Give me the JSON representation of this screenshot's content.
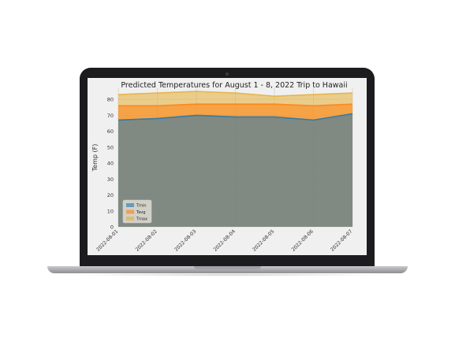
{
  "chart_data": {
    "type": "area",
    "title": "Predicted Temperatures for August 1 - 8, 2022 Trip to Hawaii",
    "xlabel": "",
    "ylabel": "Temp (F)",
    "x": [
      "2022-08-01",
      "2022-08-02",
      "2022-08-03",
      "2022-08-04",
      "2022-08-05",
      "2022-08-06",
      "2022-08-07"
    ],
    "yticks": [
      0,
      10,
      20,
      30,
      40,
      50,
      60,
      70,
      80
    ],
    "ylim": [
      0,
      87
    ],
    "grid": true,
    "legend_position": "lower-left",
    "series": [
      {
        "name": "Tmin",
        "values": [
          67,
          68,
          70,
          69,
          69,
          67,
          71
        ],
        "color": "#1f77b4"
      },
      {
        "name": "Tavg",
        "values": [
          76,
          76,
          77,
          77,
          77,
          76,
          77
        ],
        "color": "#ff7f0e"
      },
      {
        "name": "Tmax",
        "values": [
          83,
          84,
          85,
          84,
          82,
          83,
          84
        ],
        "color": "#e5ae38"
      }
    ]
  }
}
